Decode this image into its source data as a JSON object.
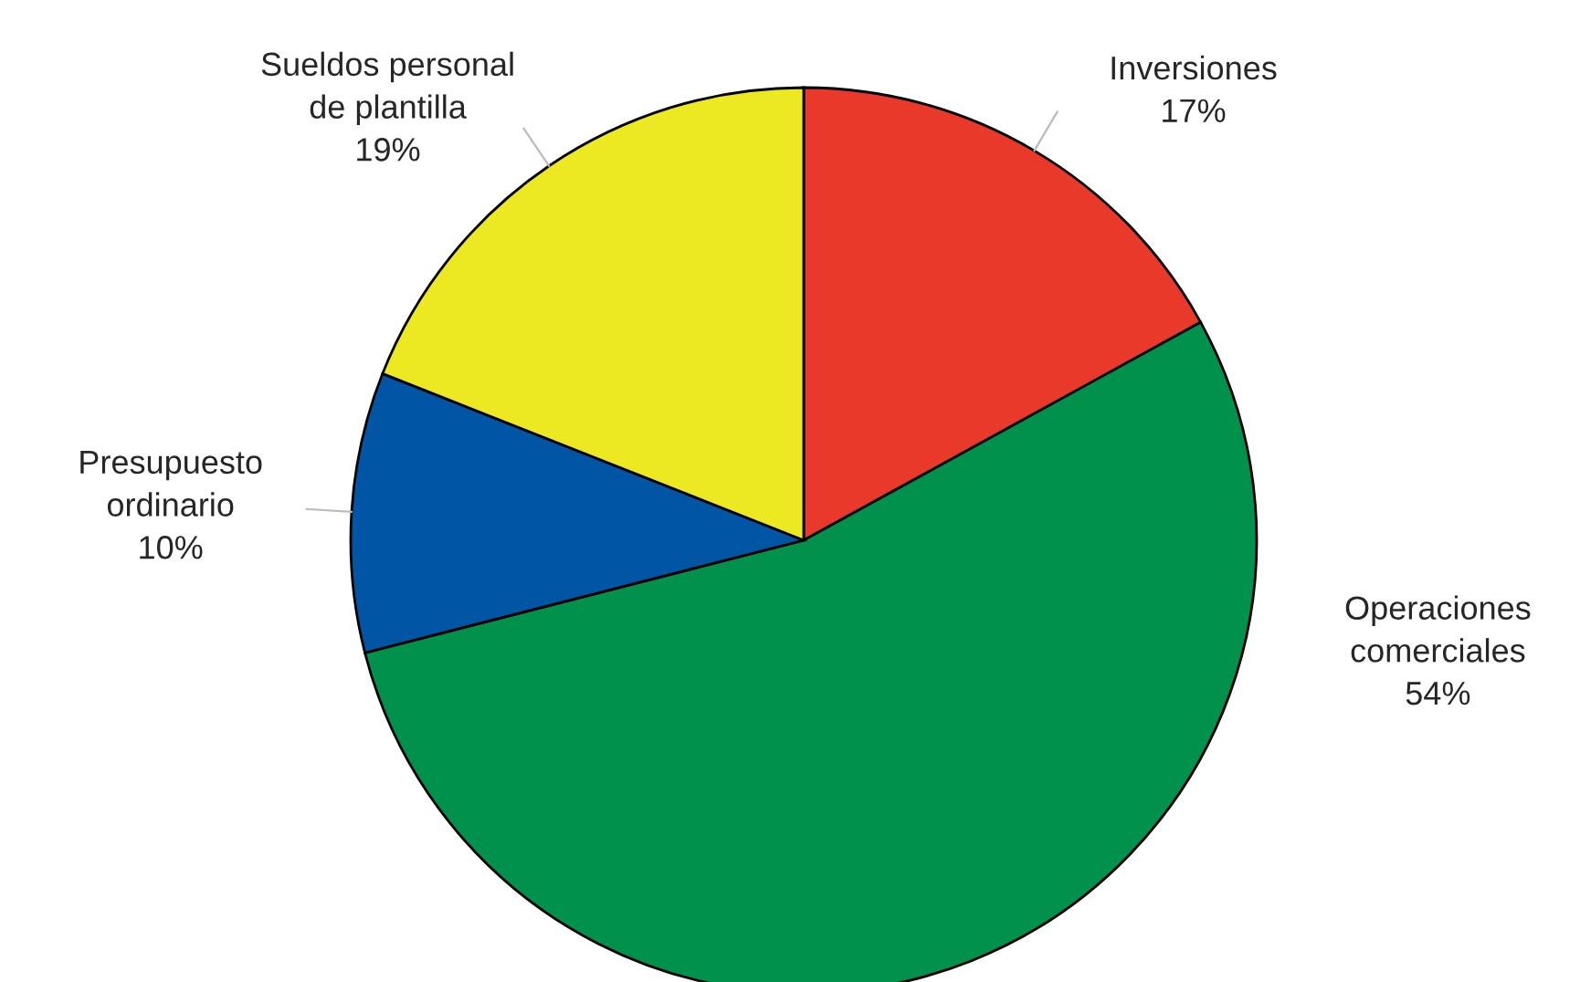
{
  "chart_data": {
    "type": "pie",
    "categories": [
      "Inversiones",
      "Operaciones\ncomerciales",
      "Presupuesto\nordinario",
      "Sueldos personal\nde plantilla"
    ],
    "values": [
      17,
      54,
      10,
      19
    ],
    "value_labels": [
      "17%",
      "54%",
      "10%",
      "19%"
    ],
    "colors": [
      "#e8392a",
      "#00914d",
      "#0055a5",
      "#ece822"
    ],
    "legend": false
  }
}
